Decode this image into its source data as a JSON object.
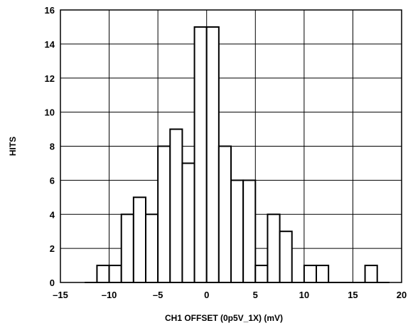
{
  "chart_data": {
    "type": "bar",
    "title": "",
    "xlabel": "CH1 OFFSET (0p5V_1X) (mV)",
    "ylabel": "HITS",
    "xlim": [
      -15,
      20
    ],
    "ylim": [
      0,
      16
    ],
    "grid": true,
    "bin_width": 1.25,
    "bins": [
      {
        "x": -11.875,
        "hits": 0
      },
      {
        "x": -10.625,
        "hits": 1
      },
      {
        "x": -9.375,
        "hits": 1
      },
      {
        "x": -8.125,
        "hits": 4
      },
      {
        "x": -6.875,
        "hits": 5
      },
      {
        "x": -5.625,
        "hits": 4
      },
      {
        "x": -4.375,
        "hits": 8
      },
      {
        "x": -3.125,
        "hits": 9
      },
      {
        "x": -1.875,
        "hits": 7
      },
      {
        "x": -0.625,
        "hits": 15
      },
      {
        "x": 0.625,
        "hits": 15
      },
      {
        "x": 1.875,
        "hits": 8
      },
      {
        "x": 3.125,
        "hits": 6
      },
      {
        "x": 4.375,
        "hits": 6
      },
      {
        "x": 5.625,
        "hits": 1
      },
      {
        "x": 6.875,
        "hits": 4
      },
      {
        "x": 8.125,
        "hits": 3
      },
      {
        "x": 9.375,
        "hits": 0
      },
      {
        "x": 10.625,
        "hits": 1
      },
      {
        "x": 11.875,
        "hits": 1
      },
      {
        "x": 13.125,
        "hits": 0
      },
      {
        "x": 14.375,
        "hits": 0
      },
      {
        "x": 15.625,
        "hits": 0
      },
      {
        "x": 16.875,
        "hits": 1
      },
      {
        "x": 18.125,
        "hits": 0
      }
    ],
    "x_ticks": [
      {
        "value": -15,
        "label": "–15"
      },
      {
        "value": -10,
        "label": "–10"
      },
      {
        "value": -5,
        "label": "–5"
      },
      {
        "value": 0,
        "label": "0"
      },
      {
        "value": 5,
        "label": "5"
      },
      {
        "value": 10,
        "label": "10"
      },
      {
        "value": 15,
        "label": "15"
      },
      {
        "value": 20,
        "label": "20"
      }
    ],
    "y_ticks": [
      {
        "value": 0,
        "label": "0"
      },
      {
        "value": 2,
        "label": "2"
      },
      {
        "value": 4,
        "label": "4"
      },
      {
        "value": 6,
        "label": "6"
      },
      {
        "value": 8,
        "label": "8"
      },
      {
        "value": 10,
        "label": "10"
      },
      {
        "value": 12,
        "label": "12"
      },
      {
        "value": 14,
        "label": "14"
      },
      {
        "value": 16,
        "label": "16"
      }
    ]
  }
}
